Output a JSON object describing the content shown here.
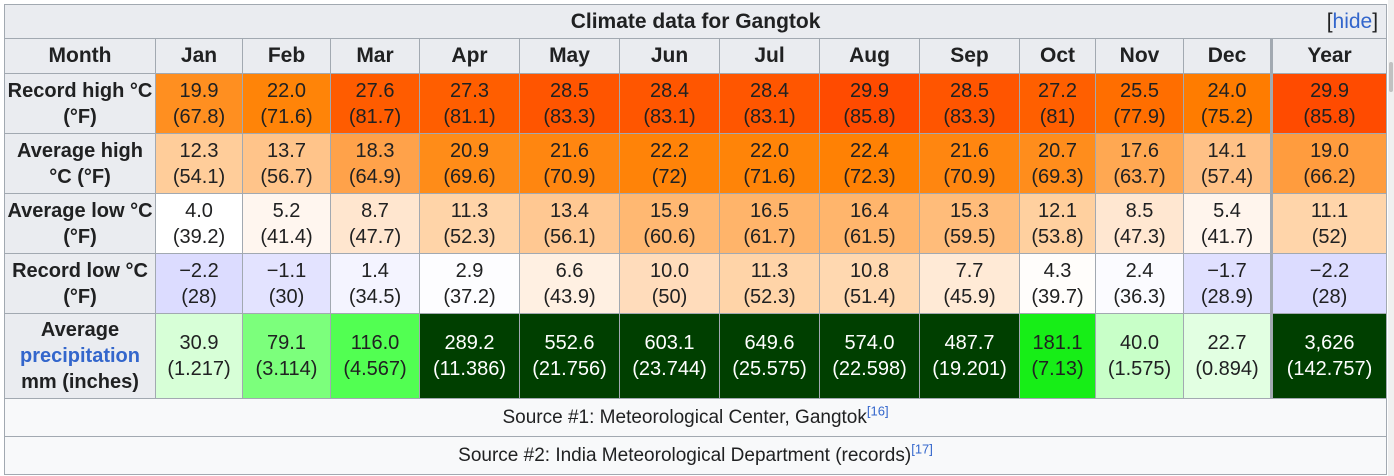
{
  "title": "Climate data for Gangtok",
  "hide_label": "hide",
  "hide_open": "[",
  "hide_close": "]",
  "months_header": [
    "Month",
    "Jan",
    "Feb",
    "Mar",
    "Apr",
    "May",
    "Jun",
    "Jul",
    "Aug",
    "Sep",
    "Oct",
    "Nov",
    "Dec",
    "Year"
  ],
  "rows": [
    {
      "label": "Record high °C (°F)",
      "cells": [
        "19.9",
        "22.0",
        "27.6",
        "27.3",
        "28.5",
        "28.4",
        "28.4",
        "29.9",
        "28.5",
        "27.2",
        "25.5",
        "24.0",
        "29.9"
      ],
      "sub": [
        "(67.8)",
        "(71.6)",
        "(81.7)",
        "(81.1)",
        "(83.3)",
        "(83.1)",
        "(83.1)",
        "(85.8)",
        "(83.3)",
        "(81)",
        "(77.9)",
        "(75.2)",
        "(85.8)"
      ],
      "colors": [
        "#ff8f20",
        "#ff8408",
        "#ff5c00",
        "#ff5e00",
        "#ff5500",
        "#ff5600",
        "#ff5600",
        "#ff4b00",
        "#ff5500",
        "#ff5f00",
        "#ff6e00",
        "#ff7c00",
        "#ff4b00"
      ]
    },
    {
      "label": "Average high °C (°F)",
      "cells": [
        "12.3",
        "13.7",
        "18.3",
        "20.9",
        "21.6",
        "22.2",
        "22.0",
        "22.4",
        "21.6",
        "20.7",
        "17.6",
        "14.1",
        "19.0"
      ],
      "sub": [
        "(54.1)",
        "(56.7)",
        "(64.9)",
        "(69.6)",
        "(70.9)",
        "(72)",
        "(71.6)",
        "(72.3)",
        "(70.9)",
        "(69.3)",
        "(63.7)",
        "(57.4)",
        "(66.2)"
      ],
      "colors": [
        "#ffcd9a",
        "#ffc48a",
        "#ffa24a",
        "#ff8c18",
        "#ff8610",
        "#ff8308",
        "#ff8408",
        "#ff8104",
        "#ff8610",
        "#ff8d1c",
        "#ffa852",
        "#ffc186",
        "#ff9c3e"
      ]
    },
    {
      "label": "Average low °C (°F)",
      "cells": [
        "4.0",
        "5.2",
        "8.7",
        "11.3",
        "13.4",
        "15.9",
        "16.5",
        "16.4",
        "15.3",
        "12.1",
        "8.5",
        "5.4",
        "11.1"
      ],
      "sub": [
        "(39.2)",
        "(41.4)",
        "(47.7)",
        "(52.3)",
        "(56.1)",
        "(60.6)",
        "(61.7)",
        "(61.5)",
        "(59.5)",
        "(53.8)",
        "(47.3)",
        "(41.7)",
        "(52)"
      ],
      "colors": [
        "#ffffff",
        "#fff6ef",
        "#ffe6cf",
        "#ffd4a8",
        "#ffc892",
        "#ffb872",
        "#ffb46a",
        "#ffb56c",
        "#ffbc7a",
        "#ffd09f",
        "#ffe7d1",
        "#fff5ed",
        "#ffd5aa"
      ]
    },
    {
      "label": "Record low °C (°F)",
      "cells": [
        "−2.2",
        "−1.1",
        "1.4",
        "2.9",
        "6.6",
        "10.0",
        "11.3",
        "10.8",
        "7.7",
        "4.3",
        "2.4",
        "−1.7",
        "−2.2"
      ],
      "sub": [
        "(28)",
        "(30)",
        "(34.5)",
        "(37.2)",
        "(43.9)",
        "(50)",
        "(52.3)",
        "(51.4)",
        "(45.9)",
        "(39.7)",
        "(36.3)",
        "(28.9)",
        "(28)"
      ],
      "colors": [
        "#dcdcff",
        "#e3e3ff",
        "#f4f4ff",
        "#fdfdff",
        "#fff0e2",
        "#ffdcbb",
        "#ffd4a8",
        "#ffd8b0",
        "#ffead6",
        "#fffdfb",
        "#fbfbff",
        "#e0e0ff",
        "#dcdcff"
      ]
    }
  ],
  "precip_row": {
    "label_top": "Average",
    "label_link": "precipitation",
    "label_bottom": "mm (inches)",
    "cells": [
      "30.9",
      "79.1",
      "116.0",
      "289.2",
      "552.6",
      "603.1",
      "649.6",
      "574.0",
      "487.7",
      "181.1",
      "40.0",
      "22.7",
      "3,626"
    ],
    "sub": [
      "(1.217)",
      "(3.114)",
      "(4.567)",
      "(11.386)",
      "(21.756)",
      "(23.744)",
      "(25.575)",
      "(22.598)",
      "(19.201)",
      "(7.13)",
      "(1.575)",
      "(0.894)",
      "(142.757)"
    ],
    "colors": [
      "#d7ffd7",
      "#7cff7c",
      "#52ff52",
      "#003f00",
      "#003f00",
      "#003f00",
      "#003f00",
      "#003f00",
      "#003f00",
      "#17ee17",
      "#c8ffc8",
      "#e2ffe2",
      "#003f00"
    ],
    "text_colors": [
      "#202122",
      "#202122",
      "#202122",
      "#ffffff",
      "#ffffff",
      "#ffffff",
      "#ffffff",
      "#ffffff",
      "#ffffff",
      "#202122",
      "#202122",
      "#202122",
      "#ffffff"
    ]
  },
  "source1": {
    "text": "Source #1: Meteorological Center, Gangtok",
    "ref": "[16]"
  },
  "source2": {
    "text": "Source #2: India Meteorological Department (records)",
    "ref": "[17]"
  }
}
